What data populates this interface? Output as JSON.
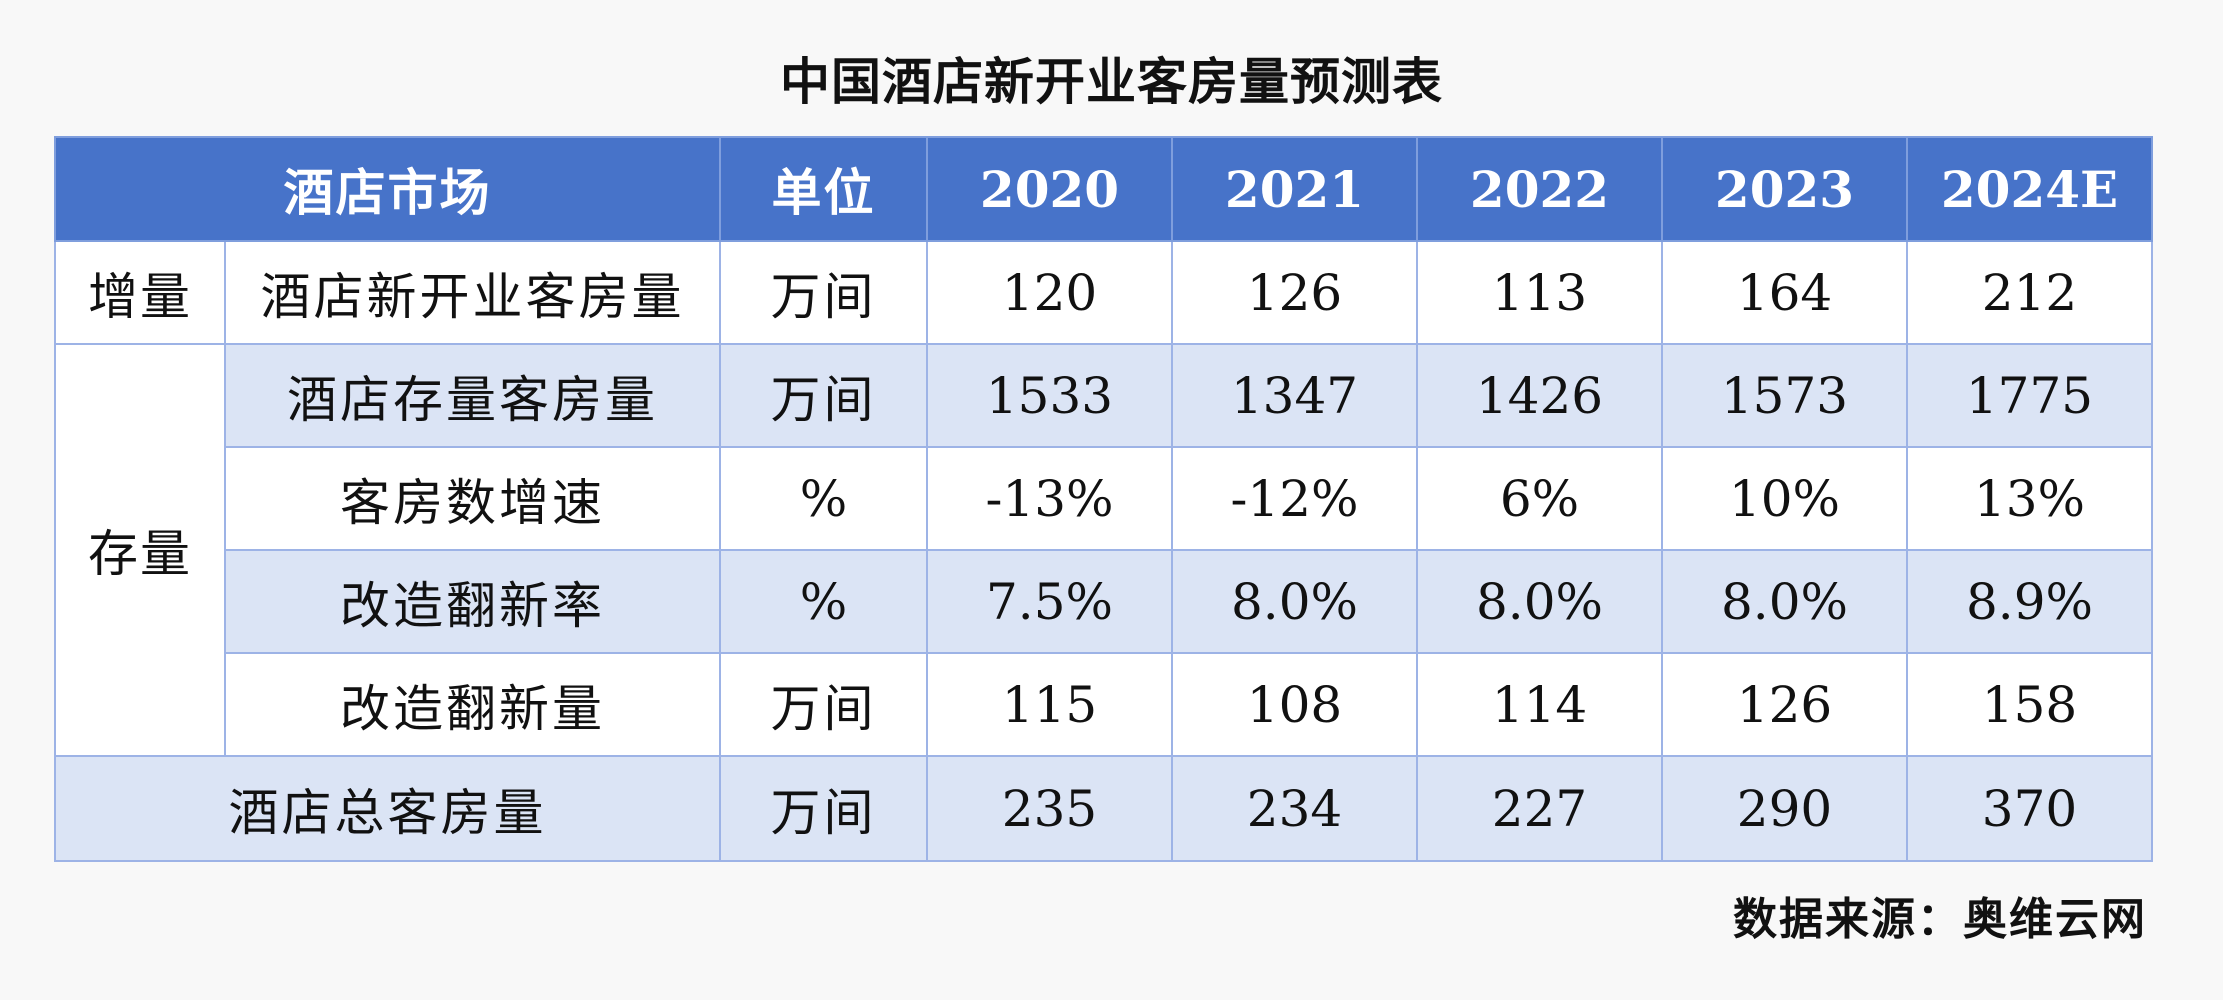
{
  "title": "中国酒店新开业客房量预测表",
  "source": "数据来源：奥维云网",
  "colors": {
    "header_bg": "#4773c9",
    "header_text": "#ffffff",
    "stripe_bg": "#dbe4f5",
    "border": "#9db3e6"
  },
  "chart_data": {
    "type": "table",
    "title": "中国酒店新开业客房量预测表",
    "columns": [
      "酒店市场",
      "单位",
      "2020",
      "2021",
      "2022",
      "2023",
      "2024E"
    ],
    "row_groups": [
      {
        "name": "增量",
        "rows": [
          0
        ]
      },
      {
        "name": "存量",
        "rows": [
          1,
          2,
          3,
          4
        ]
      }
    ],
    "rows": [
      {
        "label": "酒店新开业客房量",
        "unit": "万间",
        "values": [
          "120",
          "126",
          "113",
          "164",
          "212"
        ]
      },
      {
        "label": "酒店存量客房量",
        "unit": "万间",
        "values": [
          "1533",
          "1347",
          "1426",
          "1573",
          "1775"
        ]
      },
      {
        "label": "客房数增速",
        "unit": "%",
        "values": [
          "-13%",
          "-12%",
          "6%",
          "10%",
          "13%"
        ]
      },
      {
        "label": "改造翻新率",
        "unit": "%",
        "values": [
          "7.5%",
          "8.0%",
          "8.0%",
          "8.0%",
          "8.9%"
        ]
      },
      {
        "label": "改造翻新量",
        "unit": "万间",
        "values": [
          "115",
          "108",
          "114",
          "126",
          "158"
        ]
      },
      {
        "label": "酒店总客房量",
        "unit": "万间",
        "values": [
          "235",
          "234",
          "227",
          "290",
          "370"
        ]
      }
    ]
  }
}
